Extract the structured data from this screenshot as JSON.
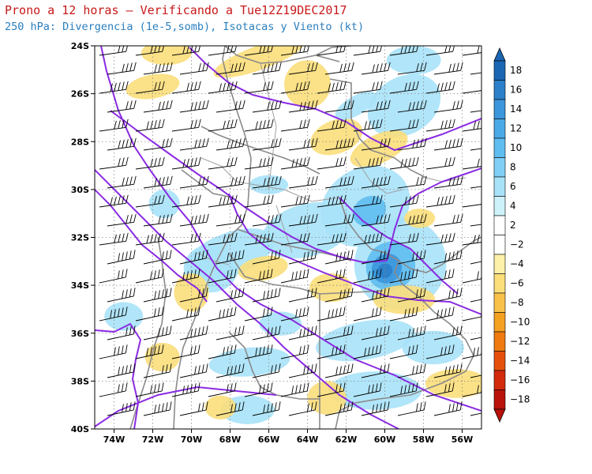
{
  "header": {
    "title": "Prono a 12 horas — Verificando a Tue12Z19DEC2017",
    "subtitle": "250 hPa: Divergencia (1e-5,somb), Isotacas y Viento (kt)"
  },
  "map": {
    "lat_labels": [
      "24S",
      "26S",
      "28S",
      "30S",
      "32S",
      "34S",
      "36S",
      "38S",
      "40S"
    ],
    "lon_labels": [
      "74W",
      "72W",
      "70W",
      "68W",
      "66W",
      "64W",
      "62W",
      "60W",
      "58W",
      "56W"
    ],
    "lat_range": [
      -40,
      -24
    ],
    "lon_range": [
      -75,
      -55
    ],
    "grid": "dotted",
    "field": "divergence",
    "contours": "isotachs",
    "vectors": "wind barbs"
  },
  "colorbar": {
    "labels": [
      "18",
      "16",
      "14",
      "12",
      "10",
      "8",
      "6",
      "4",
      "2",
      "−2",
      "−4",
      "−6",
      "−8",
      "−10",
      "−12",
      "−14",
      "−16",
      "−18"
    ],
    "colors": [
      "#1a66b3",
      "#2b80c9",
      "#3b96dc",
      "#4aaae8",
      "#5fbdf0",
      "#80cff6",
      "#a8e2f8",
      "#cdf2f9",
      "#ffffff",
      "#ffffff",
      "#fdf0a8",
      "#fbde7a",
      "#f8c24a",
      "#f4a020",
      "#ee7a10",
      "#e4500c",
      "#d32a0c",
      "#b8120a"
    ],
    "orientation": "vertical",
    "placement": "right"
  }
}
